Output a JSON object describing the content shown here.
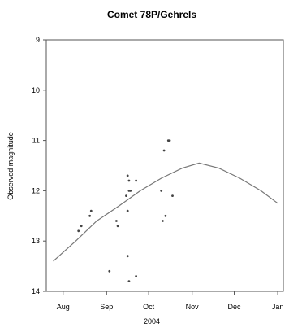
{
  "chart_data": {
    "type": "scatter",
    "title": "Comet 78P/Gehrels",
    "xlabel": "2004",
    "ylabel": "Observed magnitude",
    "ylim": [
      14,
      9
    ],
    "y_inverted": true,
    "xlim": [
      "2004-07-20",
      "2005-01-05"
    ],
    "x_ticks": [
      {
        "label": "Aug",
        "date": "2004-08-01"
      },
      {
        "label": "Sep",
        "date": "2004-09-01"
      },
      {
        "label": "Oct",
        "date": "2004-10-01"
      },
      {
        "label": "Nov",
        "date": "2004-11-01"
      },
      {
        "label": "Dec",
        "date": "2004-12-01"
      },
      {
        "label": "Jan",
        "date": "2005-01-01"
      }
    ],
    "y_ticks": [
      9,
      10,
      11,
      12,
      13,
      14
    ],
    "grid": false,
    "series": [
      {
        "kind": "points",
        "points": [
          {
            "x": "2004-08-12",
            "y": 12.8
          },
          {
            "x": "2004-08-14",
            "y": 12.7
          },
          {
            "x": "2004-08-20",
            "y": 12.5
          },
          {
            "x": "2004-08-21",
            "y": 12.4
          },
          {
            "x": "2004-09-03",
            "y": 13.6
          },
          {
            "x": "2004-09-08",
            "y": 12.6
          },
          {
            "x": "2004-09-09",
            "y": 12.7
          },
          {
            "x": "2004-09-15",
            "y": 12.1
          },
          {
            "x": "2004-09-16",
            "y": 11.7
          },
          {
            "x": "2004-09-16",
            "y": 12.4
          },
          {
            "x": "2004-09-16",
            "y": 13.3
          },
          {
            "x": "2004-09-17",
            "y": 11.8
          },
          {
            "x": "2004-09-17",
            "y": 12.0
          },
          {
            "x": "2004-09-17",
            "y": 13.8
          },
          {
            "x": "2004-09-18",
            "y": 12.0
          },
          {
            "x": "2004-09-22",
            "y": 11.8
          },
          {
            "x": "2004-09-22",
            "y": 13.7
          },
          {
            "x": "2004-10-10",
            "y": 12.0
          },
          {
            "x": "2004-10-11",
            "y": 12.6
          },
          {
            "x": "2004-10-12",
            "y": 11.2
          },
          {
            "x": "2004-10-13",
            "y": 12.5
          },
          {
            "x": "2004-10-15",
            "y": 11.0
          },
          {
            "x": "2004-10-16",
            "y": 11.0
          },
          {
            "x": "2004-10-18",
            "y": 12.1
          }
        ]
      },
      {
        "kind": "curve",
        "points": [
          {
            "x": "2004-07-25",
            "y": 13.4
          },
          {
            "x": "2004-08-10",
            "y": 13.0
          },
          {
            "x": "2004-08-25",
            "y": 12.6
          },
          {
            "x": "2004-09-10",
            "y": 12.3
          },
          {
            "x": "2004-09-25",
            "y": 12.0
          },
          {
            "x": "2004-10-10",
            "y": 11.75
          },
          {
            "x": "2004-10-25",
            "y": 11.55
          },
          {
            "x": "2004-11-06",
            "y": 11.45
          },
          {
            "x": "2004-11-20",
            "y": 11.55
          },
          {
            "x": "2004-12-05",
            "y": 11.75
          },
          {
            "x": "2004-12-20",
            "y": 12.0
          },
          {
            "x": "2005-01-01",
            "y": 12.25
          }
        ]
      }
    ]
  }
}
